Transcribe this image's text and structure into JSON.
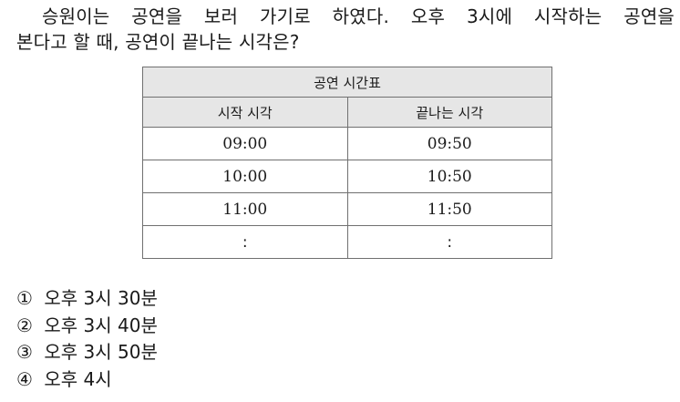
{
  "question": {
    "line1": "승원이는 공연을 보러 가기로 하였다. 오후 3시에 시작하는 공연을",
    "line2": "본다고 할 때, 공연이 끝나는 시각은?"
  },
  "table": {
    "title": "공연 시간표",
    "headers": [
      "시작 시각",
      "끝나는 시각"
    ],
    "rows": [
      [
        "09:00",
        "09:50"
      ],
      [
        "10:00",
        "10:50"
      ],
      [
        "11:00",
        "11:50"
      ],
      [
        ":",
        ":"
      ]
    ]
  },
  "choices": [
    {
      "num": "①",
      "text": "오후 3시 30분"
    },
    {
      "num": "②",
      "text": "오후 3시 40분"
    },
    {
      "num": "③",
      "text": "오후 3시 50분"
    },
    {
      "num": "④",
      "text": "오후 4시"
    }
  ]
}
